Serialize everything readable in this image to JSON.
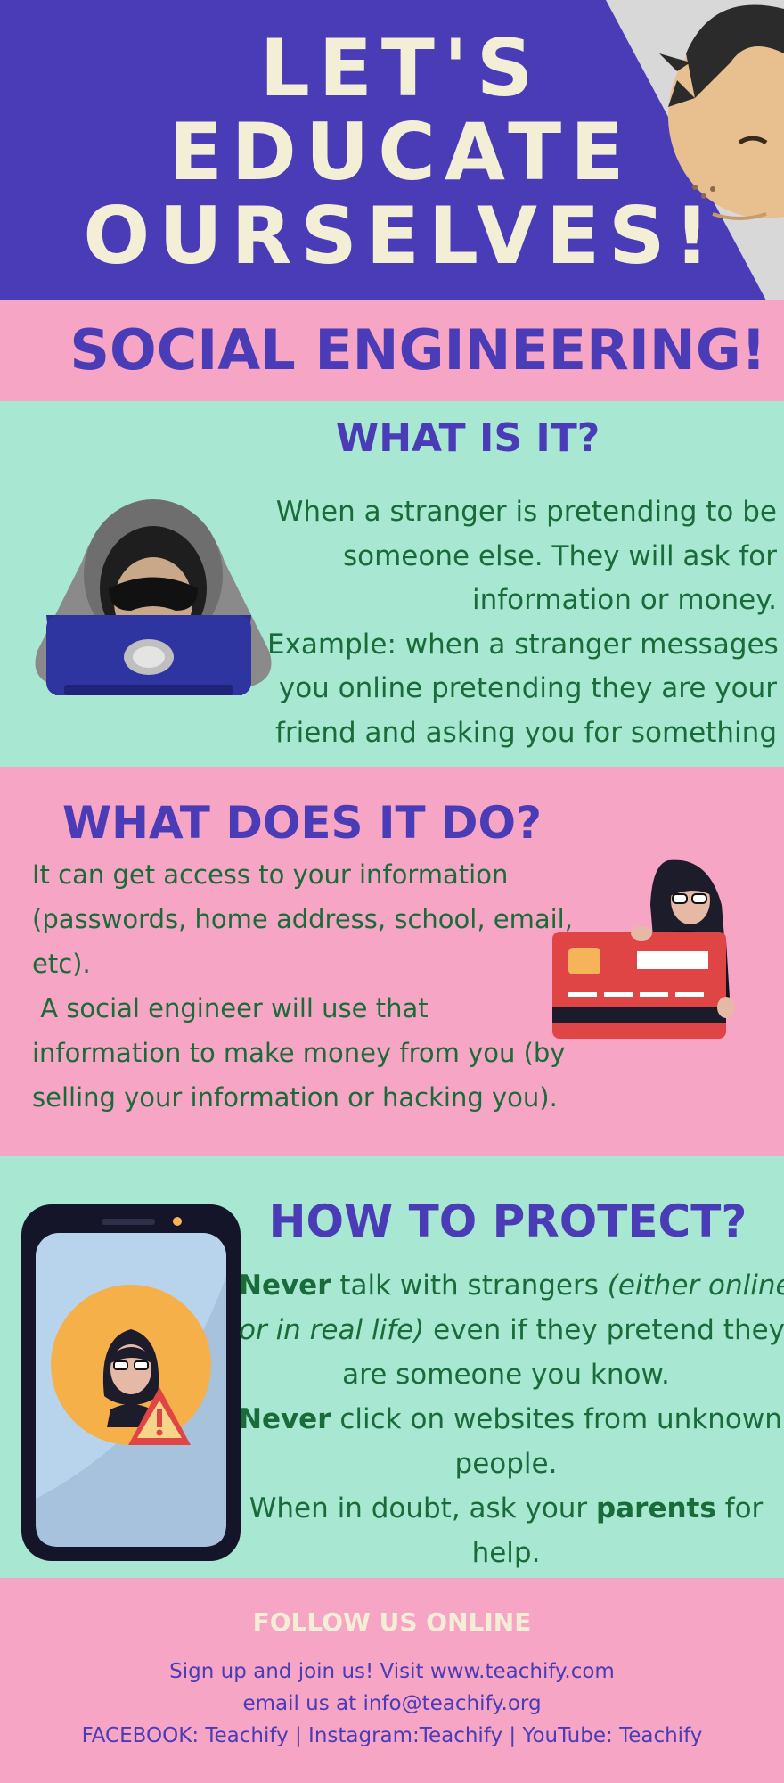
{
  "header": {
    "title_lines": [
      "LET'S",
      "EDUCATE",
      "OURSELVES!"
    ]
  },
  "banner": {
    "title": "SOCIAL ENGINEERING!"
  },
  "what_is_it": {
    "heading": "WHAT IS IT?",
    "lines": [
      "When a stranger is pretending to be",
      "someone else. They will ask for",
      "information or money.",
      "Example: when a stranger messages",
      "you online pretending they are your",
      "friend and asking you for something"
    ]
  },
  "what_does_it_do": {
    "heading": "WHAT DOES IT DO?",
    "lines": [
      "It can get access to your information",
      "(passwords, home address, school, email,",
      "etc).",
      " A social engineer will use that",
      "information to make money from you (by",
      "selling your information or hacking you)."
    ]
  },
  "how_to_protect": {
    "heading": "HOW TO PROTECT?",
    "line1_bold": "Never",
    "line1_rest": " talk with strangers ",
    "line1_italic": "(either online",
    "line2_italic": "or in real life)",
    "line2_rest": " even if they pretend they",
    "line3": "are someone you know.",
    "line4_bold": "Never",
    "line4_rest": " click on websites from unknown",
    "line5": "people.",
    "line6_start": "When in doubt, ask your ",
    "line6_bold": "parents",
    "line6_end": " for",
    "line7": "help."
  },
  "footer": {
    "heading": "FOLLOW US ONLINE",
    "signup": "Sign up and join us! Visit www.teachify.com",
    "email": "email us at info@teachify.org",
    "social": "FACEBOOK: Teachify | Instagram:Teachify | YouTube: Teachify"
  },
  "colors": {
    "purple": "#4a3bb6",
    "pink": "#f7a5c4",
    "mint": "#a8e8d2",
    "cream": "#f3efd7",
    "green_text": "#1a6b3a"
  },
  "icons": [
    "hooded-hacker-icon",
    "credit-card-thief-icon",
    "phone-warning-icon",
    "cartoon-boy-face-icon"
  ]
}
